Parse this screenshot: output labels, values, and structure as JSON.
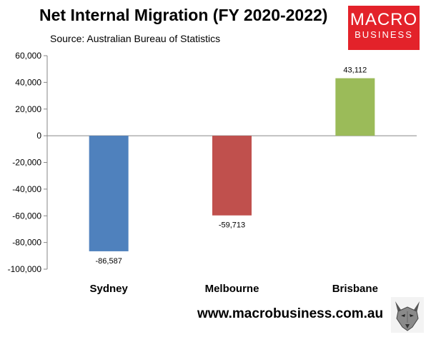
{
  "header": {
    "title": "Net Internal Migration (FY 2020-2022)",
    "subtitle": "Source: Australian Bureau of Statistics"
  },
  "logo": {
    "line1": "MACRO",
    "line2": "BUSINESS",
    "background": "#e3222a"
  },
  "footer": {
    "website": "www.macrobusiness.com.au",
    "mascot_icon": "wolf-head-icon"
  },
  "chart_data": {
    "type": "bar",
    "title": "Net Internal Migration (FY 2020-2022)",
    "subtitle": "Source: Australian Bureau of Statistics",
    "xlabel": "",
    "ylabel": "",
    "ylim": [
      -100000,
      60000
    ],
    "yticks": [
      60000,
      40000,
      20000,
      0,
      -20000,
      -40000,
      -60000,
      -80000,
      -100000
    ],
    "ytick_labels": [
      "60,000",
      "40,000",
      "20,000",
      "0",
      "-20,000",
      "-40,000",
      "-60,000",
      "-80,000",
      "-100,000"
    ],
    "categories": [
      "Sydney",
      "Melbourne",
      "Brisbane"
    ],
    "values": [
      -86587,
      -59713,
      43112
    ],
    "value_labels": [
      "-86,587",
      "-59,713",
      "43,112"
    ],
    "colors": [
      "#4f81bd",
      "#c0504d",
      "#9bbb59"
    ],
    "grid": false,
    "legend": "none"
  }
}
